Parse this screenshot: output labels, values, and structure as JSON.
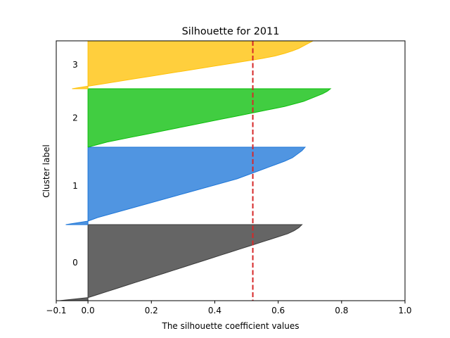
{
  "chart_data": {
    "type": "area",
    "title": "Silhouette for 2011",
    "xlabel": "The silhouette coefficient values",
    "ylabel": "Cluster label",
    "xlim": [
      -0.1,
      1.0
    ],
    "xticks": [
      "−0.1",
      "0.0",
      "0.2",
      "0.4",
      "0.6",
      "0.8",
      "1.0"
    ],
    "xtick_values": [
      -0.1,
      0.0,
      0.2,
      0.4,
      0.6,
      0.8,
      1.0
    ],
    "average_silhouette": 0.52,
    "average_line_color": "#d62728",
    "grid": false,
    "clusters": [
      {
        "label": "0",
        "color": "#3a3a3a",
        "sorted_silhouette_values": [
          -0.09,
          0.0,
          0.03,
          0.06,
          0.09,
          0.12,
          0.15,
          0.18,
          0.21,
          0.24,
          0.27,
          0.3,
          0.33,
          0.36,
          0.39,
          0.42,
          0.45,
          0.48,
          0.51,
          0.54,
          0.57,
          0.6,
          0.63,
          0.65,
          0.665,
          0.675
        ]
      },
      {
        "label": "1",
        "color": "#1f77d8",
        "sorted_silhouette_values": [
          -0.07,
          0.0,
          0.03,
          0.07,
          0.11,
          0.15,
          0.19,
          0.23,
          0.27,
          0.31,
          0.35,
          0.39,
          0.43,
          0.47,
          0.5,
          0.53,
          0.56,
          0.59,
          0.62,
          0.645,
          0.66,
          0.675,
          0.685
        ]
      },
      {
        "label": "2",
        "color": "#0cbf0c",
        "sorted_silhouette_values": [
          0.0,
          0.03,
          0.06,
          0.1,
          0.14,
          0.18,
          0.22,
          0.26,
          0.3,
          0.34,
          0.38,
          0.42,
          0.46,
          0.5,
          0.54,
          0.58,
          0.62,
          0.65,
          0.68,
          0.7,
          0.72,
          0.74,
          0.755,
          0.765
        ]
      },
      {
        "label": "3",
        "color": "#ffc107",
        "sorted_silhouette_values": [
          -0.05,
          0.0,
          0.05,
          0.1,
          0.15,
          0.2,
          0.25,
          0.3,
          0.35,
          0.4,
          0.45,
          0.5,
          0.55,
          0.59,
          0.62,
          0.645,
          0.665,
          0.68,
          0.695,
          0.71
        ]
      }
    ],
    "cluster_order_bottom_to_top": [
      "0",
      "1",
      "2",
      "3"
    ]
  }
}
